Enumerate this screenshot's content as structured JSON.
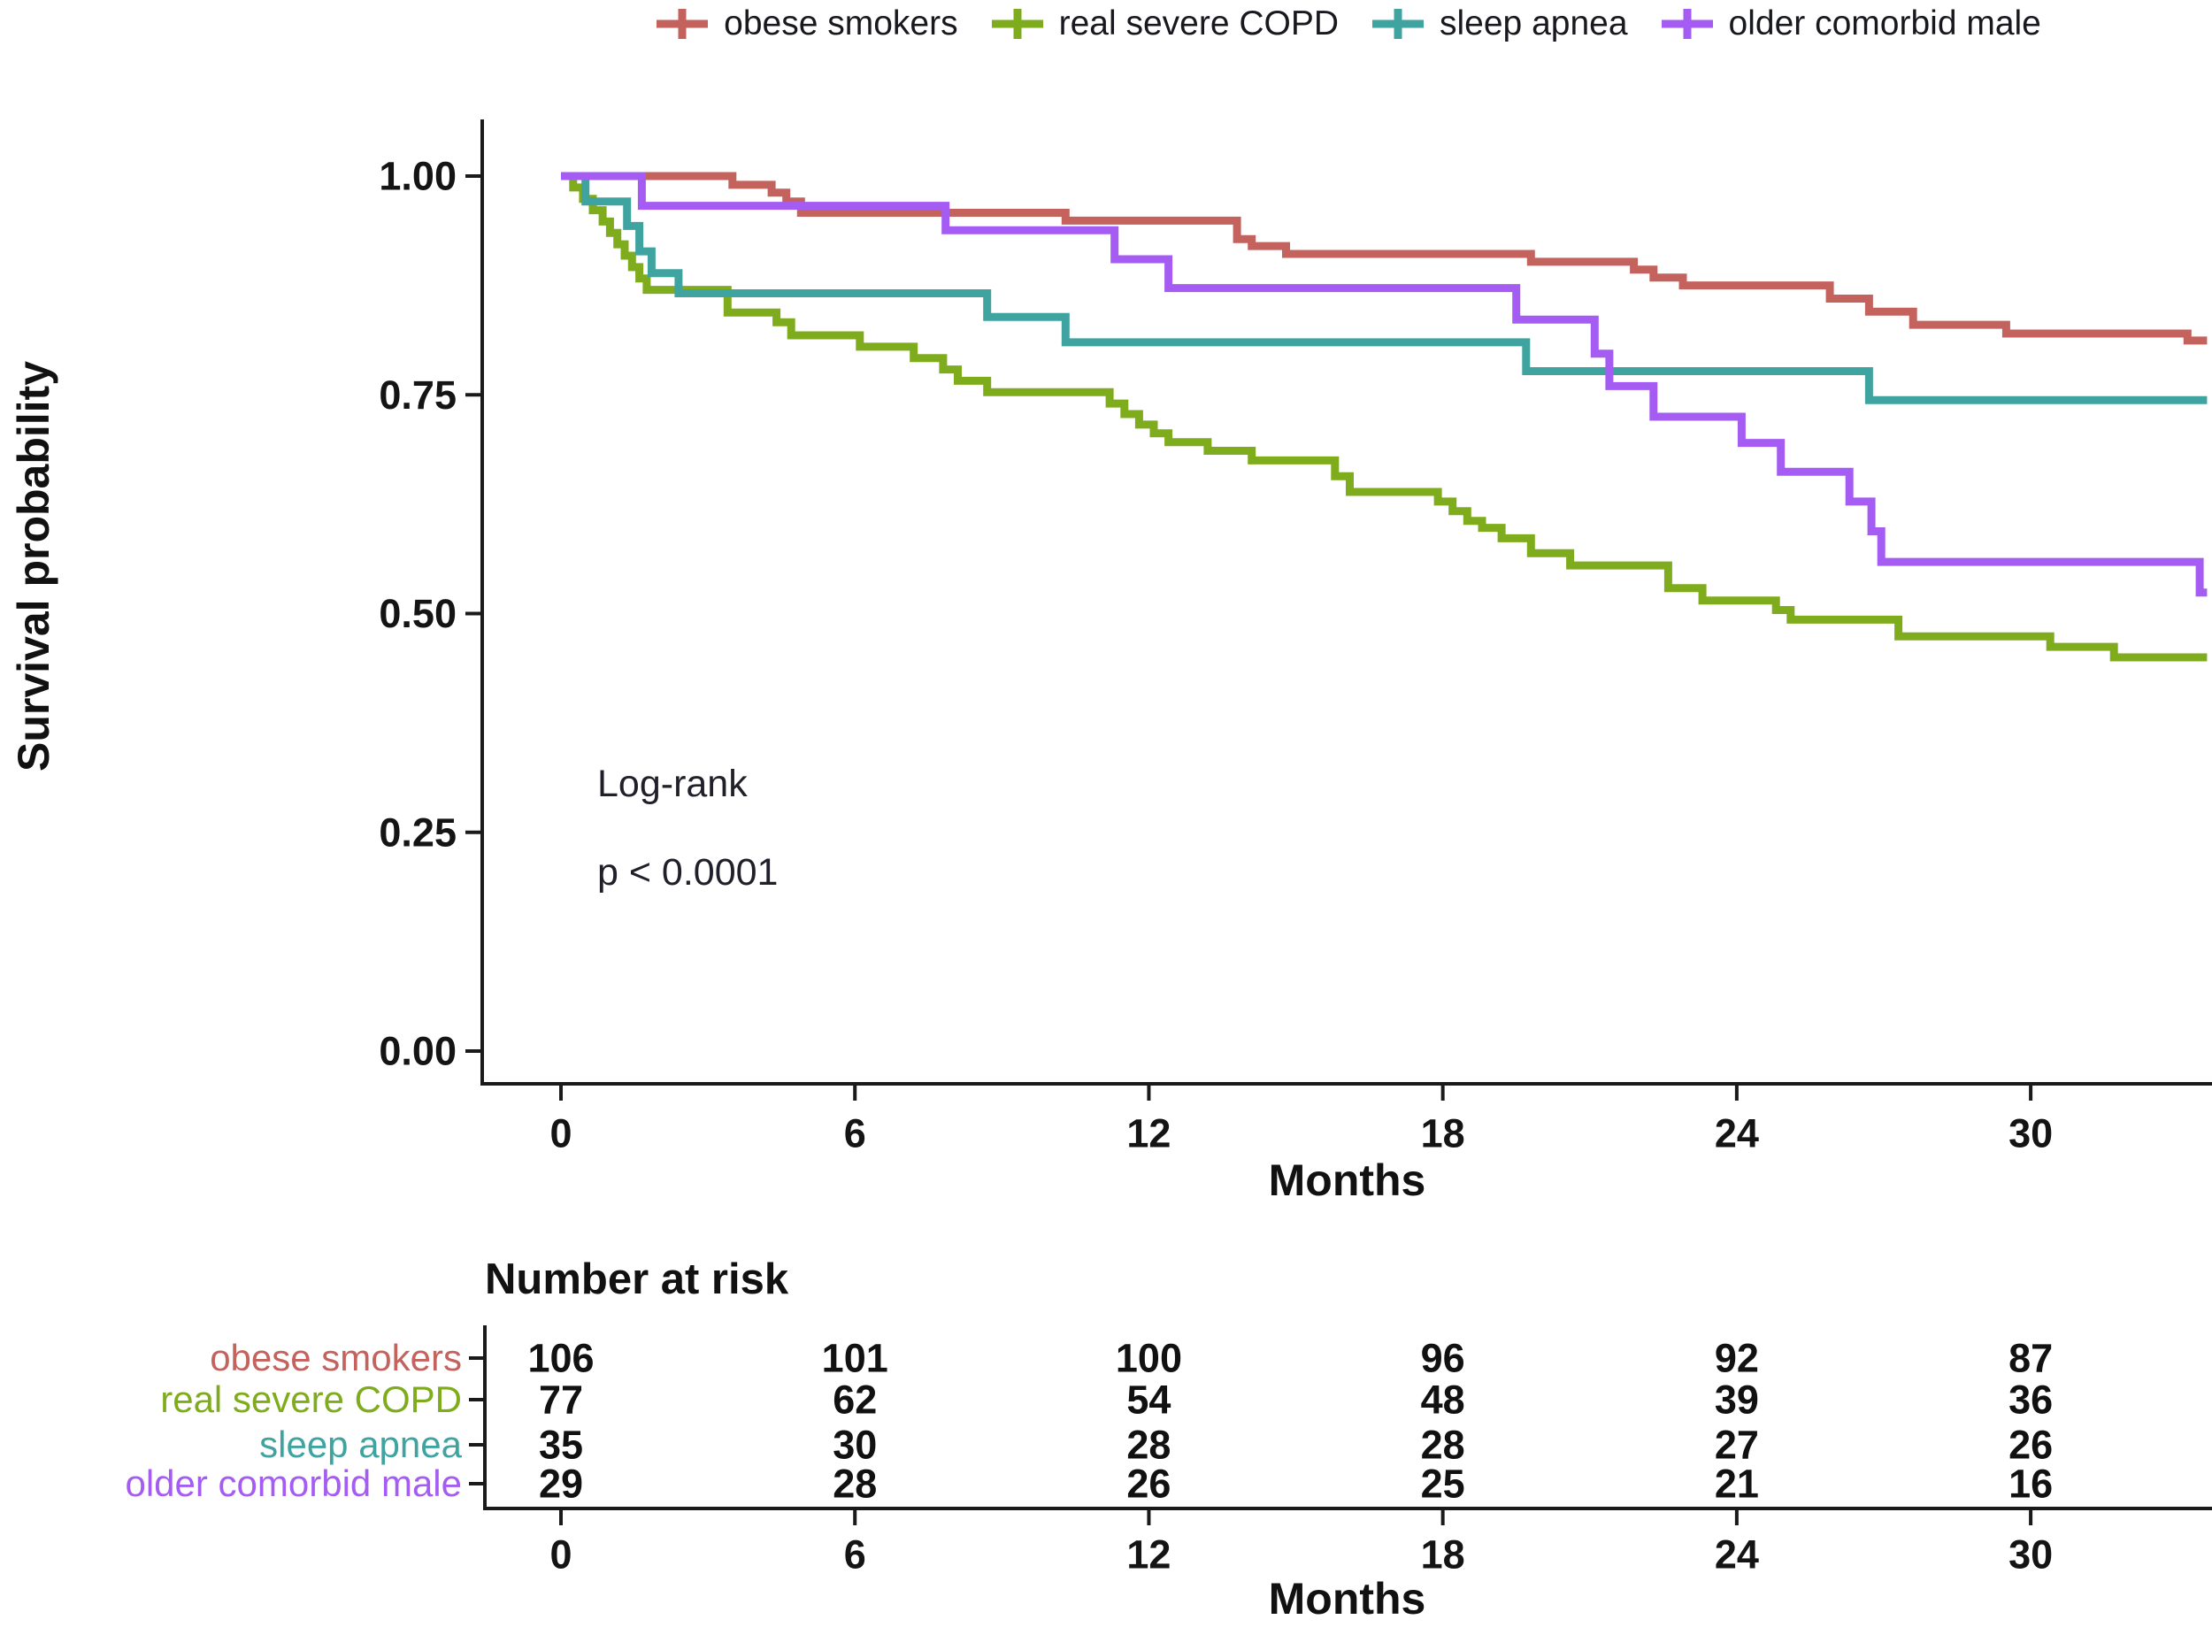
{
  "legend": {
    "items": [
      {
        "label": "obese smokers"
      },
      {
        "label": "real severe COPD"
      },
      {
        "label": "sleep apnea"
      },
      {
        "label": "older comorbid male"
      }
    ]
  },
  "annotations": {
    "test_name": "Log-rank",
    "p_value": "p < 0.0001"
  },
  "risk_table": {
    "title": "Number at risk",
    "x_axis_title": "Months",
    "columns": [
      0,
      6,
      12,
      18,
      24,
      30
    ],
    "rows": [
      {
        "label": "obese smokers",
        "color": "#C4635E",
        "values": [
          106,
          101,
          100,
          96,
          92,
          87
        ]
      },
      {
        "label": "real severe COPD",
        "color": "#7FAC1C",
        "values": [
          77,
          62,
          54,
          48,
          39,
          36
        ]
      },
      {
        "label": "sleep apnea",
        "color": "#3FA3A0",
        "values": [
          35,
          30,
          28,
          28,
          27,
          26
        ]
      },
      {
        "label": "older comorbid male",
        "color": "#A55CF2",
        "values": [
          29,
          28,
          26,
          25,
          21,
          16
        ]
      }
    ]
  },
  "chart_data": {
    "type": "line",
    "subtype": "kaplan-meier-step",
    "title": "",
    "xlabel": "Months",
    "ylabel": "Survival probability",
    "xlim": [
      0,
      33.6
    ],
    "ylim": [
      0,
      1.0
    ],
    "grid": false,
    "legend_position": "top",
    "x_ticks": [
      {
        "value": 0,
        "label": "0"
      },
      {
        "value": 6,
        "label": "6"
      },
      {
        "value": 12,
        "label": "12"
      },
      {
        "value": 18,
        "label": "18"
      },
      {
        "value": 24,
        "label": "24"
      },
      {
        "value": 30,
        "label": "30"
      }
    ],
    "y_ticks": [
      {
        "value": 0.0,
        "label": "0.00"
      },
      {
        "value": 0.25,
        "label": "0.25"
      },
      {
        "value": 0.5,
        "label": "0.50"
      },
      {
        "value": 0.75,
        "label": "0.75"
      },
      {
        "value": 1.0,
        "label": "1.00"
      }
    ],
    "series": [
      {
        "name": "obese smokers",
        "color": "#C4635E",
        "steps": [
          [
            0,
            1
          ],
          [
            3.5,
            0.99
          ],
          [
            4.3,
            0.981
          ],
          [
            4.6,
            0.971
          ],
          [
            4.9,
            0.958
          ],
          [
            10.3,
            0.949
          ],
          [
            13.8,
            0.928
          ],
          [
            14.1,
            0.92
          ],
          [
            14.8,
            0.911
          ],
          [
            19.8,
            0.902
          ],
          [
            21.9,
            0.893
          ],
          [
            22.3,
            0.884
          ],
          [
            22.9,
            0.875
          ],
          [
            25.9,
            0.86
          ],
          [
            26.7,
            0.845
          ],
          [
            27.6,
            0.83
          ],
          [
            29.5,
            0.82
          ],
          [
            33.2,
            0.812
          ]
        ]
      },
      {
        "name": "real severe COPD",
        "color": "#7FAC1C",
        "steps": [
          [
            0,
            1
          ],
          [
            0.25,
            0.987
          ],
          [
            0.45,
            0.974
          ],
          [
            0.65,
            0.961
          ],
          [
            0.85,
            0.948
          ],
          [
            1,
            0.935
          ],
          [
            1.15,
            0.922
          ],
          [
            1.3,
            0.909
          ],
          [
            1.45,
            0.896
          ],
          [
            1.6,
            0.883
          ],
          [
            1.75,
            0.87
          ],
          [
            3.4,
            0.844
          ],
          [
            4.4,
            0.833
          ],
          [
            4.7,
            0.818
          ],
          [
            6.1,
            0.805
          ],
          [
            7.2,
            0.792
          ],
          [
            7.8,
            0.779
          ],
          [
            8.1,
            0.766
          ],
          [
            8.7,
            0.753
          ],
          [
            11.2,
            0.74
          ],
          [
            11.5,
            0.728
          ],
          [
            11.8,
            0.716
          ],
          [
            12.1,
            0.706
          ],
          [
            12.4,
            0.696
          ],
          [
            13.2,
            0.686
          ],
          [
            14.1,
            0.675
          ],
          [
            15.8,
            0.657
          ],
          [
            16.1,
            0.639
          ],
          [
            17.9,
            0.628
          ],
          [
            18.2,
            0.617
          ],
          [
            18.5,
            0.606
          ],
          [
            18.8,
            0.598
          ],
          [
            19.2,
            0.586
          ],
          [
            19.8,
            0.569
          ],
          [
            20.6,
            0.555
          ],
          [
            22.6,
            0.529
          ],
          [
            23.3,
            0.515
          ],
          [
            24.8,
            0.504
          ],
          [
            25.1,
            0.493
          ],
          [
            27.3,
            0.474
          ],
          [
            30.4,
            0.462
          ],
          [
            31.7,
            0.45
          ]
        ]
      },
      {
        "name": "sleep apnea",
        "color": "#3FA3A0",
        "steps": [
          [
            0,
            1
          ],
          [
            0.5,
            0.971
          ],
          [
            1.35,
            0.943
          ],
          [
            1.6,
            0.914
          ],
          [
            1.85,
            0.889
          ],
          [
            2.4,
            0.866
          ],
          [
            8.7,
            0.839
          ],
          [
            10.3,
            0.81
          ],
          [
            19.7,
            0.777
          ],
          [
            26.7,
            0.744
          ]
        ]
      },
      {
        "name": "older comorbid male",
        "color": "#A55CF2",
        "steps": [
          [
            0,
            1
          ],
          [
            1.65,
            0.966
          ],
          [
            7.85,
            0.938
          ],
          [
            11.3,
            0.905
          ],
          [
            12.4,
            0.872
          ],
          [
            19.5,
            0.836
          ],
          [
            21.1,
            0.797
          ],
          [
            21.4,
            0.76
          ],
          [
            22.3,
            0.725
          ],
          [
            24.1,
            0.695
          ],
          [
            24.9,
            0.662
          ],
          [
            26.3,
            0.628
          ],
          [
            26.75,
            0.594
          ],
          [
            26.95,
            0.559
          ],
          [
            33.45,
            0.524
          ]
        ]
      }
    ]
  }
}
